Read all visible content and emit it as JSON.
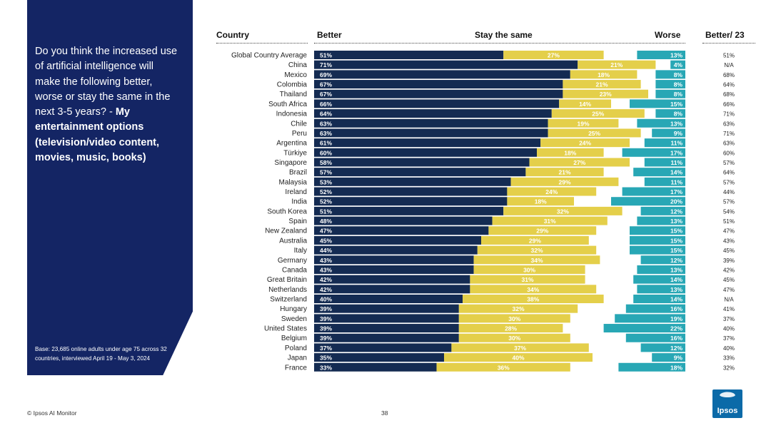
{
  "question": {
    "text": "Do you think the increased use of artificial intelligence will make the following better, worse or stay the same in the next 3-5 years? -",
    "bold": "My entertainment options (television/video content, movies, music, books)"
  },
  "base_note": "Base: 23,685 online adults under age 75 across 32 countries, interviewed April 19 - May 3, 2024",
  "headers": {
    "country": "Country",
    "better": "Better",
    "stay": "Stay the same",
    "worse": "Worse",
    "better23": "Better/ 23"
  },
  "footer": {
    "copyright": "© Ipsos AI Monitor",
    "page": "38"
  },
  "logo": {
    "text": "Ipsos",
    "icon": "ipsos-logo-icon"
  },
  "colors": {
    "better": "#142b52",
    "stay": "#e4cf4a",
    "worse": "#28a7b5",
    "panel": "#142564"
  },
  "chart_data": {
    "type": "bar",
    "orientation": "horizontal-stacked",
    "series": [
      "Better",
      "Stay the same",
      "Worse"
    ],
    "rows": [
      {
        "country": "Global Country Average",
        "better": 51,
        "stay": 27,
        "worse": 13,
        "better23": "51%"
      },
      {
        "country": "China",
        "better": 71,
        "stay": 21,
        "worse": 4,
        "better23": "N/A"
      },
      {
        "country": "Mexico",
        "better": 69,
        "stay": 18,
        "worse": 8,
        "better23": "68%"
      },
      {
        "country": "Colombia",
        "better": 67,
        "stay": 21,
        "worse": 8,
        "better23": "64%"
      },
      {
        "country": "Thailand",
        "better": 67,
        "stay": 23,
        "worse": 8,
        "better23": "68%"
      },
      {
        "country": "South Africa",
        "better": 66,
        "stay": 14,
        "worse": 15,
        "better23": "66%"
      },
      {
        "country": "Indonesia",
        "better": 64,
        "stay": 25,
        "worse": 8,
        "better23": "71%"
      },
      {
        "country": "Chile",
        "better": 63,
        "stay": 19,
        "worse": 13,
        "better23": "63%"
      },
      {
        "country": "Peru",
        "better": 63,
        "stay": 25,
        "worse": 9,
        "better23": "71%"
      },
      {
        "country": "Argentina",
        "better": 61,
        "stay": 24,
        "worse": 11,
        "better23": "63%"
      },
      {
        "country": "Türkiye",
        "better": 60,
        "stay": 18,
        "worse": 17,
        "better23": "60%"
      },
      {
        "country": "Singapore",
        "better": 58,
        "stay": 27,
        "worse": 11,
        "better23": "57%"
      },
      {
        "country": "Brazil",
        "better": 57,
        "stay": 21,
        "worse": 14,
        "better23": "64%"
      },
      {
        "country": "Malaysia",
        "better": 53,
        "stay": 29,
        "worse": 11,
        "better23": "57%"
      },
      {
        "country": "Ireland",
        "better": 52,
        "stay": 24,
        "worse": 17,
        "better23": "44%"
      },
      {
        "country": "India",
        "better": 52,
        "stay": 18,
        "worse": 20,
        "better23": "57%"
      },
      {
        "country": "South Korea",
        "better": 51,
        "stay": 32,
        "worse": 12,
        "better23": "54%"
      },
      {
        "country": "Spain",
        "better": 48,
        "stay": 31,
        "worse": 13,
        "better23": "51%"
      },
      {
        "country": "New Zealand",
        "better": 47,
        "stay": 29,
        "worse": 15,
        "better23": "47%"
      },
      {
        "country": "Australia",
        "better": 45,
        "stay": 29,
        "worse": 15,
        "better23": "43%"
      },
      {
        "country": "Italy",
        "better": 44,
        "stay": 32,
        "worse": 15,
        "better23": "45%"
      },
      {
        "country": "Germany",
        "better": 43,
        "stay": 34,
        "worse": 12,
        "better23": "39%"
      },
      {
        "country": "Canada",
        "better": 43,
        "stay": 30,
        "worse": 13,
        "better23": "42%"
      },
      {
        "country": "Great Britain",
        "better": 42,
        "stay": 31,
        "worse": 14,
        "better23": "45%"
      },
      {
        "country": "Netherlands",
        "better": 42,
        "stay": 34,
        "worse": 13,
        "better23": "47%"
      },
      {
        "country": "Switzerland",
        "better": 40,
        "stay": 38,
        "worse": 14,
        "better23": "N/A"
      },
      {
        "country": "Hungary",
        "better": 39,
        "stay": 32,
        "worse": 16,
        "better23": "41%"
      },
      {
        "country": "Sweden",
        "better": 39,
        "stay": 30,
        "worse": 19,
        "better23": "37%"
      },
      {
        "country": "United States",
        "better": 39,
        "stay": 28,
        "worse": 22,
        "better23": "40%"
      },
      {
        "country": "Belgium",
        "better": 39,
        "stay": 30,
        "worse": 16,
        "better23": "37%"
      },
      {
        "country": "Poland",
        "better": 37,
        "stay": 37,
        "worse": 12,
        "better23": "40%"
      },
      {
        "country": "Japan",
        "better": 35,
        "stay": 40,
        "worse": 9,
        "better23": "33%"
      },
      {
        "country": "France",
        "better": 33,
        "stay": 36,
        "worse": 18,
        "better23": "32%"
      }
    ]
  }
}
